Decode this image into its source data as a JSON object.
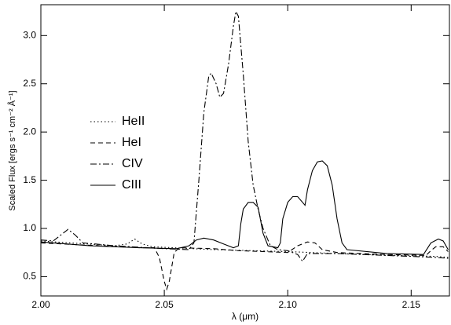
{
  "chart_data": {
    "type": "line",
    "x_label": "λ (μm)",
    "y_label": "Scaled Flux [ergs s⁻¹ cm⁻² Å⁻¹]",
    "xlim": [
      2.0,
      2.1655
    ],
    "ylim": [
      0.3,
      3.32
    ],
    "xticks": [
      {
        "value": 2.0,
        "label": "2.00"
      },
      {
        "value": 2.05,
        "label": "2.05"
      },
      {
        "value": 2.1,
        "label": "2.10"
      },
      {
        "value": 2.15,
        "label": "2.15"
      }
    ],
    "yticks": [
      0.5,
      {
        "value": 1.0,
        "label": "1.0"
      },
      1.5,
      {
        "value": 2.0,
        "label": "2.0"
      },
      2.5,
      {
        "value": 3.0,
        "label": "3.0"
      }
    ],
    "series": [
      {
        "name": "HeII",
        "color": "#000000",
        "dash": "1.5,3",
        "x": [
          2.0,
          2.03,
          2.035,
          2.038,
          2.041,
          2.045,
          2.07,
          2.1,
          2.13,
          2.16,
          2.165
        ],
        "values": [
          0.87,
          0.82,
          0.84,
          0.89,
          0.84,
          0.81,
          0.78,
          0.76,
          0.73,
          0.71,
          0.7
        ]
      },
      {
        "name": "HeI",
        "color": "#000000",
        "dash": "6,4",
        "x": [
          2.0,
          2.04,
          2.046,
          2.048,
          2.05,
          2.051,
          2.052,
          2.054,
          2.056,
          2.07,
          2.08,
          2.1,
          2.104,
          2.108,
          2.111,
          2.114,
          2.12,
          2.14,
          2.156,
          2.158,
          2.16,
          2.163,
          2.165
        ],
        "values": [
          0.85,
          0.8,
          0.8,
          0.7,
          0.45,
          0.37,
          0.45,
          0.75,
          0.8,
          0.79,
          0.77,
          0.75,
          0.82,
          0.86,
          0.85,
          0.78,
          0.75,
          0.73,
          0.72,
          0.77,
          0.81,
          0.81,
          0.76
        ]
      },
      {
        "name": "CIV",
        "color": "#000000",
        "dash": "8,3,2,3",
        "x": [
          2.0,
          2.005,
          2.008,
          2.011,
          2.014,
          2.017,
          2.03,
          2.05,
          2.06,
          2.062,
          2.064,
          2.066,
          2.068,
          2.069,
          2.071,
          2.0725,
          2.074,
          2.076,
          2.078,
          2.079,
          2.08,
          2.082,
          2.084,
          2.086,
          2.088,
          2.09,
          2.093,
          2.096,
          2.1,
          2.104,
          2.106,
          2.108,
          2.12,
          2.14,
          2.15,
          2.16,
          2.165
        ],
        "values": [
          0.88,
          0.87,
          0.93,
          0.99,
          0.93,
          0.85,
          0.82,
          0.79,
          0.78,
          0.85,
          1.5,
          2.2,
          2.58,
          2.61,
          2.5,
          2.36,
          2.4,
          2.7,
          3.1,
          3.25,
          3.2,
          2.6,
          1.9,
          1.45,
          1.2,
          1.0,
          0.82,
          0.78,
          0.77,
          0.73,
          0.66,
          0.74,
          0.74,
          0.72,
          0.71,
          0.7,
          0.69
        ]
      },
      {
        "name": "CIII",
        "color": "#000000",
        "dash": "none",
        "x": [
          2.0,
          2.02,
          2.04,
          2.055,
          2.06,
          2.063,
          2.066,
          2.07,
          2.074,
          2.078,
          2.08,
          2.081,
          2.082,
          2.084,
          2.086,
          2.088,
          2.09,
          2.092,
          2.096,
          2.097,
          2.098,
          2.1,
          2.102,
          2.104,
          2.106,
          2.107,
          2.108,
          2.11,
          2.112,
          2.114,
          2.116,
          2.118,
          2.12,
          2.122,
          2.124,
          2.14,
          2.155,
          2.158,
          2.161,
          2.163,
          2.165
        ],
        "values": [
          0.86,
          0.82,
          0.8,
          0.79,
          0.82,
          0.88,
          0.9,
          0.88,
          0.84,
          0.8,
          0.82,
          1.05,
          1.2,
          1.27,
          1.27,
          1.22,
          0.95,
          0.82,
          0.8,
          0.85,
          1.1,
          1.27,
          1.33,
          1.33,
          1.27,
          1.24,
          1.4,
          1.6,
          1.69,
          1.7,
          1.65,
          1.45,
          1.1,
          0.85,
          0.78,
          0.74,
          0.73,
          0.85,
          0.89,
          0.87,
          0.78
        ]
      }
    ]
  }
}
